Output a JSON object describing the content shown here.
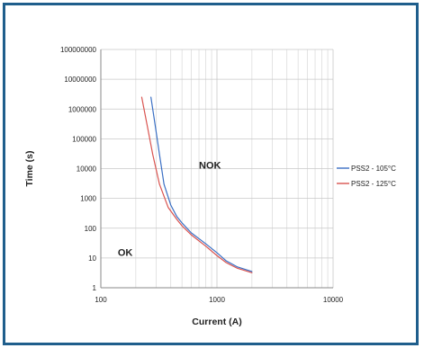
{
  "chart_data": {
    "type": "line",
    "title": "",
    "xlabel": "Current (A)",
    "ylabel": "Time (s)",
    "x_scale": "log",
    "y_scale": "log",
    "xlim": [
      100,
      10000
    ],
    "ylim": [
      1,
      100000000
    ],
    "x_ticks": [
      "100",
      "1000",
      "10000"
    ],
    "y_ticks": [
      "1",
      "10",
      "100",
      "1000",
      "10000",
      "100000",
      "1000000",
      "10000000",
      "100000000"
    ],
    "grid": "on",
    "legend_position": "right",
    "annotations": [
      {
        "text": "NOK",
        "x": 700,
        "y": 10000
      },
      {
        "text": "OK",
        "x": 140,
        "y": 12
      }
    ],
    "series": [
      {
        "name": "PSS2 - 105°C",
        "color": "#3a6fc4",
        "points": [
          [
            270,
            2500000
          ],
          [
            290,
            400000
          ],
          [
            320,
            30000
          ],
          [
            350,
            3000
          ],
          [
            400,
            600
          ],
          [
            450,
            250
          ],
          [
            500,
            150
          ],
          [
            600,
            70
          ],
          [
            800,
            30
          ],
          [
            1000,
            15
          ],
          [
            1200,
            8
          ],
          [
            1500,
            5
          ],
          [
            2000,
            3.5
          ]
        ]
      },
      {
        "name": "PSS2 - 125°C",
        "color": "#d9534f",
        "points": [
          [
            225,
            2500000
          ],
          [
            250,
            300000
          ],
          [
            280,
            30000
          ],
          [
            320,
            3000
          ],
          [
            380,
            500
          ],
          [
            450,
            200
          ],
          [
            500,
            120
          ],
          [
            600,
            60
          ],
          [
            800,
            25
          ],
          [
            1000,
            12
          ],
          [
            1200,
            7
          ],
          [
            1500,
            4.5
          ],
          [
            2000,
            3.2
          ]
        ]
      }
    ]
  }
}
